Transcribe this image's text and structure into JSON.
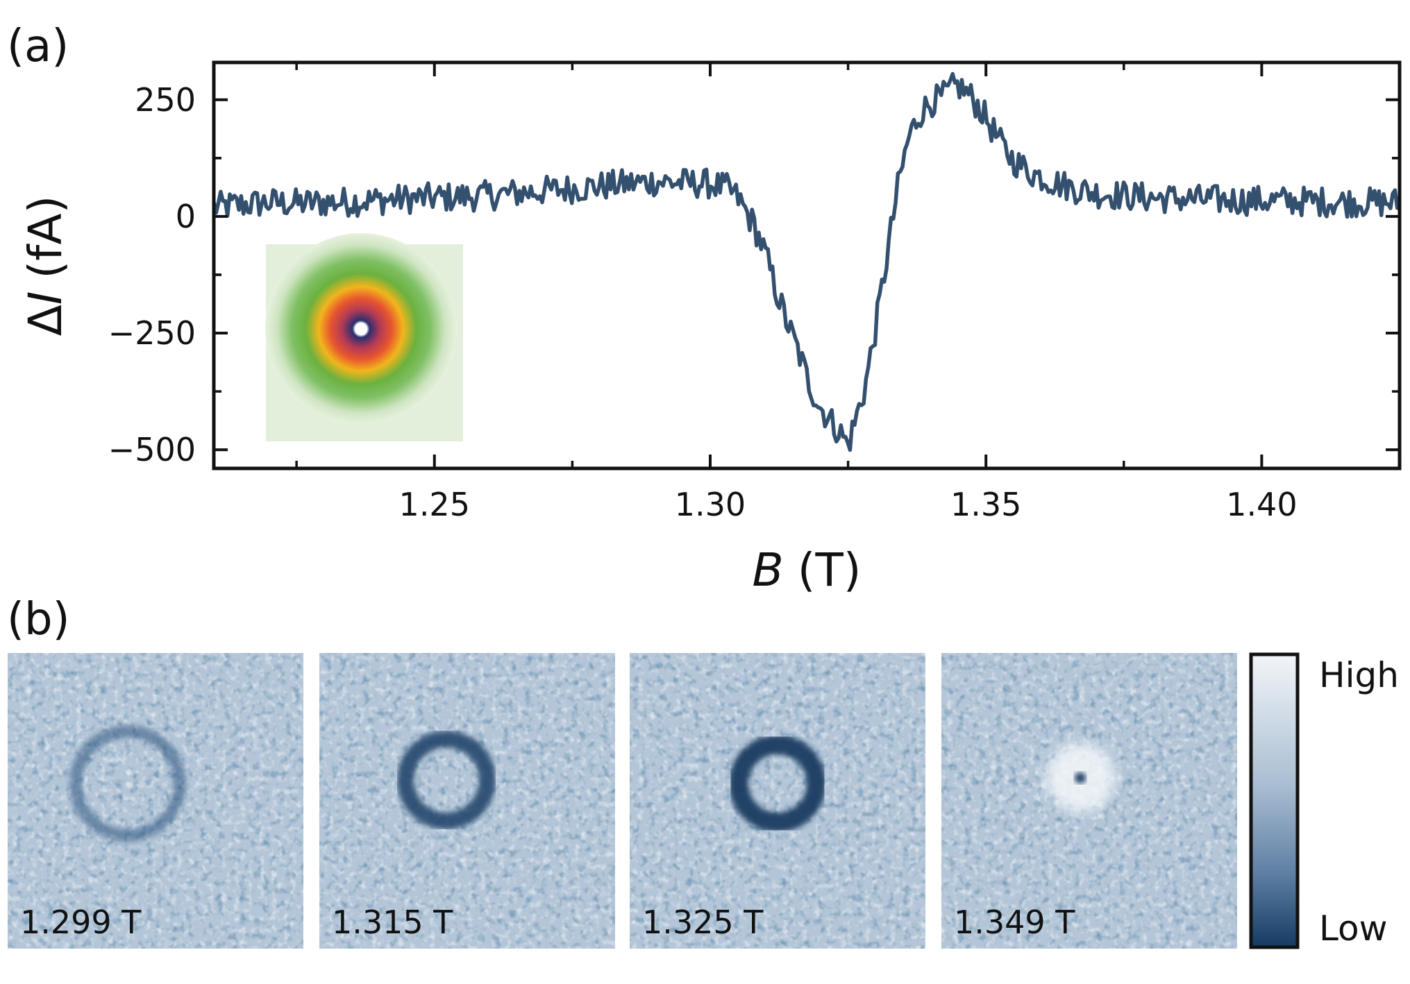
{
  "panels": {
    "a_label": "(a)",
    "b_label": "(b)"
  },
  "colors": {
    "line": "#34506f",
    "map_dark": "#1c3f66",
    "map_light": "#f2f5f8",
    "inset_background": "#e3efda",
    "inset_ring_outer": "#4ea23a",
    "inset_ring_mid": "#f2b51c",
    "inset_ring_inner": "#d9453a",
    "inset_core": "#2a2f6e"
  },
  "chart_data": [
    {
      "type": "line",
      "title": "",
      "xlabel_italic": "B",
      "xlabel_unit": "(T)",
      "ylabel_prefix": "Δ",
      "ylabel_italic": "I",
      "ylabel_unit": "(fA)",
      "xlim": [
        1.21,
        1.425
      ],
      "ylim": [
        -540,
        330
      ],
      "xticks": [
        1.25,
        1.3,
        1.35,
        1.4
      ],
      "xtick_labels": [
        "1.25",
        "1.30",
        "1.35",
        "1.40"
      ],
      "yticks": [
        250,
        0,
        -250,
        -500
      ],
      "ytick_labels": [
        "250",
        "0",
        "−250",
        "−500"
      ],
      "grid": false,
      "legend": "none",
      "series": [
        {
          "x": [
            1.21,
            1.215,
            1.22,
            1.225,
            1.23,
            1.235,
            1.24,
            1.245,
            1.25,
            1.255,
            1.26,
            1.265,
            1.27,
            1.275,
            1.28,
            1.285,
            1.29,
            1.295,
            1.3,
            1.303,
            1.305,
            1.308,
            1.31,
            1.312,
            1.314,
            1.316,
            1.318,
            1.32,
            1.322,
            1.324,
            1.325,
            1.326,
            1.328,
            1.33,
            1.332,
            1.334,
            1.336,
            1.338,
            1.34,
            1.342,
            1.344,
            1.345,
            1.347,
            1.349,
            1.351,
            1.353,
            1.355,
            1.358,
            1.362,
            1.366,
            1.37,
            1.375,
            1.38,
            1.385,
            1.39,
            1.395,
            1.4,
            1.405,
            1.41,
            1.415,
            1.42,
            1.425
          ],
          "y": [
            20,
            25,
            30,
            28,
            30,
            32,
            35,
            38,
            40,
            42,
            45,
            50,
            55,
            60,
            65,
            70,
            75,
            72,
            70,
            60,
            40,
            -20,
            -80,
            -160,
            -230,
            -290,
            -360,
            -410,
            -440,
            -470,
            -490,
            -450,
            -370,
            -240,
            -90,
            60,
            170,
            220,
            245,
            255,
            275,
            280,
            260,
            230,
            190,
            150,
            120,
            95,
            75,
            60,
            50,
            45,
            40,
            38,
            36,
            35,
            34,
            33,
            32,
            31,
            30,
            30
          ]
        }
      ],
      "inset": "fitted 2D ring image"
    },
    {
      "type": "heatmap",
      "colorbar_high": "High",
      "colorbar_low": "Low",
      "maps": [
        {
          "label": "1.299 T",
          "field_T": 1.299,
          "feature": "faint ring"
        },
        {
          "label": "1.315 T",
          "field_T": 1.315,
          "feature": "dark ring"
        },
        {
          "label": "1.325 T",
          "field_T": 1.325,
          "feature": "darkest ring"
        },
        {
          "label": "1.349 T",
          "field_T": 1.349,
          "feature": "bright disk with dark center dot"
        }
      ]
    }
  ]
}
